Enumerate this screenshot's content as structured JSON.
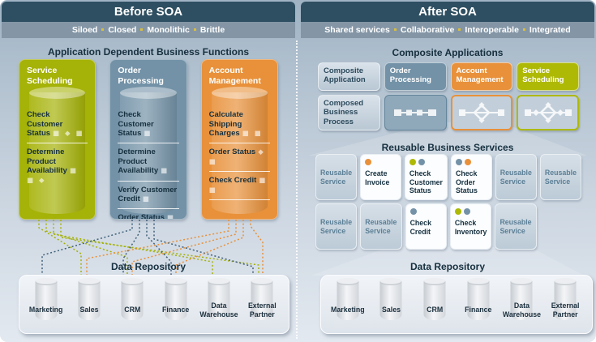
{
  "colors": {
    "header_bar": "#2e4f61",
    "tagline_bar": "#8496a6",
    "tagline_dot": "#d9bd3f",
    "accent_green": "#aeb906",
    "accent_blue": "#7392a7",
    "accent_orange": "#e8913a"
  },
  "left": {
    "header": "Before SOA",
    "tagline": [
      "Siloed",
      "Closed",
      "Monolithic",
      "Brittle"
    ],
    "section_title": "Application Dependent Business Functions",
    "apps": [
      {
        "name": "Service Scheduling",
        "items": [
          {
            "label": "Check Customer Status",
            "icons": "■ ◆ ■"
          },
          {
            "label": "Determine Product Availability",
            "icons": "■ ■ ◆"
          }
        ]
      },
      {
        "name": "Order Processing",
        "items": [
          {
            "label": "Check Customer Status",
            "icons": "■"
          },
          {
            "label": "Determine Product Availability",
            "icons": "■"
          },
          {
            "label": "Verify Customer Credit",
            "icons": "■"
          },
          {
            "label": "Order Status",
            "icons": "■"
          }
        ]
      },
      {
        "name": "Account Management",
        "items": [
          {
            "label": "Calculate Shipping Charges",
            "icons": "■ ■"
          },
          {
            "label": "Order Status",
            "icons": "◆ ■"
          },
          {
            "label": "Check Credit",
            "icons": "■ ■"
          }
        ]
      }
    ]
  },
  "right": {
    "header": "After SOA",
    "tagline": [
      "Shared services",
      "Collaborative",
      "Interoperable",
      "Integrated"
    ],
    "composite": {
      "title": "Composite Applications",
      "row1": [
        "Composite Application",
        "Order Processing",
        "Account Management",
        "Service Scheduling"
      ],
      "row2_label": "Composed Business Process"
    },
    "reusable": {
      "title": "Reusable Business Services",
      "row1": [
        {
          "label": "Reusable Service",
          "dots": []
        },
        {
          "label": "Create Invoice",
          "dots": [
            "orange"
          ]
        },
        {
          "label": "Check Customer Status",
          "dots": [
            "green",
            "blue"
          ]
        },
        {
          "label": "Check Order Status",
          "dots": [
            "blue",
            "orange"
          ]
        },
        {
          "label": "Reusable Service",
          "dots": []
        },
        {
          "label": "Reusable Service",
          "dots": []
        }
      ],
      "row2": [
        {
          "label": "Reusable Service",
          "dots": []
        },
        {
          "label": "Reusable Service",
          "dots": []
        },
        {
          "label": "Check Credit",
          "dots": [
            "blue"
          ]
        },
        {
          "label": "Check Inventory",
          "dots": [
            "green",
            "blue"
          ]
        },
        {
          "label": "Reusable Service",
          "dots": []
        }
      ]
    }
  },
  "data_repository": {
    "title": "Data Repository",
    "databases": [
      "Marketing",
      "Sales",
      "CRM",
      "Finance",
      "Data Warehouse",
      "External Partner"
    ]
  }
}
